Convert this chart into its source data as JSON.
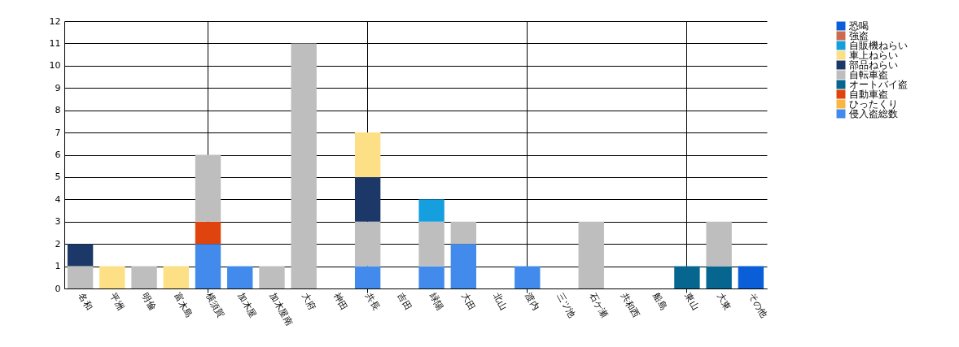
{
  "chart_data": {
    "type": "bar",
    "stacked": true,
    "categories": [
      "名和",
      "平洲",
      "明倫",
      "富木島",
      "横須賀",
      "加木屋",
      "加木屋南",
      "大府",
      "神田",
      "共長",
      "吉田",
      "緑陽",
      "大田",
      "北山",
      "渡内",
      "三ツ池",
      "石ケ瀬",
      "共和西",
      "船島",
      "東山",
      "大東",
      "その他"
    ],
    "series": [
      {
        "name": "侵入盗総数",
        "color": "#428bec",
        "values": [
          0,
          0,
          0,
          0,
          2,
          1,
          0,
          0,
          0,
          1,
          0,
          1,
          2,
          0,
          1,
          0,
          0,
          0,
          0,
          0,
          0,
          0
        ]
      },
      {
        "name": "ひったくり",
        "color": "#fbb545",
        "values": [
          0,
          0,
          0,
          0,
          0,
          0,
          0,
          0,
          0,
          0,
          0,
          0,
          0,
          0,
          0,
          0,
          0,
          0,
          0,
          0,
          0,
          0
        ]
      },
      {
        "name": "自動車盗",
        "color": "#e0440e",
        "values": [
          0,
          0,
          0,
          0,
          1,
          0,
          0,
          0,
          0,
          0,
          0,
          0,
          0,
          0,
          0,
          0,
          0,
          0,
          0,
          0,
          0,
          0
        ]
      },
      {
        "name": "オートバイ盗",
        "color": "#06668f",
        "values": [
          0,
          0,
          0,
          0,
          0,
          0,
          0,
          0,
          0,
          0,
          0,
          0,
          0,
          0,
          0,
          0,
          0,
          0,
          0,
          1,
          1,
          0
        ]
      },
      {
        "name": "自転車盗",
        "color": "#bebebe",
        "values": [
          1,
          0,
          1,
          0,
          3,
          0,
          1,
          11,
          0,
          2,
          0,
          2,
          1,
          0,
          0,
          0,
          3,
          0,
          0,
          0,
          2,
          0
        ]
      },
      {
        "name": "部品ねらい",
        "color": "#1c3869",
        "values": [
          1,
          0,
          0,
          0,
          0,
          0,
          0,
          0,
          0,
          2,
          0,
          0,
          0,
          0,
          0,
          0,
          0,
          0,
          0,
          0,
          0,
          0
        ]
      },
      {
        "name": "車上ねらい",
        "color": "#fde085",
        "values": [
          0,
          1,
          0,
          1,
          0,
          0,
          0,
          0,
          0,
          2,
          0,
          0,
          0,
          0,
          0,
          0,
          0,
          0,
          0,
          0,
          0,
          0
        ]
      },
      {
        "name": "自販機ねらい",
        "color": "#169fdf",
        "values": [
          0,
          0,
          0,
          0,
          0,
          0,
          0,
          0,
          0,
          0,
          0,
          1,
          0,
          0,
          0,
          0,
          0,
          0,
          0,
          0,
          0,
          0
        ]
      },
      {
        "name": "強盗",
        "color": "#cc6b4f",
        "values": [
          0,
          0,
          0,
          0,
          0,
          0,
          0,
          0,
          0,
          0,
          0,
          0,
          0,
          0,
          0,
          0,
          0,
          0,
          0,
          0,
          0,
          0
        ]
      },
      {
        "name": "恐喝",
        "color": "#0a5fd8",
        "values": [
          0,
          0,
          0,
          0,
          0,
          0,
          0,
          0,
          0,
          0,
          0,
          0,
          0,
          0,
          0,
          0,
          0,
          0,
          0,
          0,
          0,
          1
        ]
      }
    ],
    "ylim": [
      0,
      12
    ],
    "yticks": [
      0,
      1,
      2,
      3,
      4,
      5,
      6,
      7,
      8,
      9,
      10,
      11,
      12
    ],
    "grid": true,
    "legend": "top right"
  }
}
